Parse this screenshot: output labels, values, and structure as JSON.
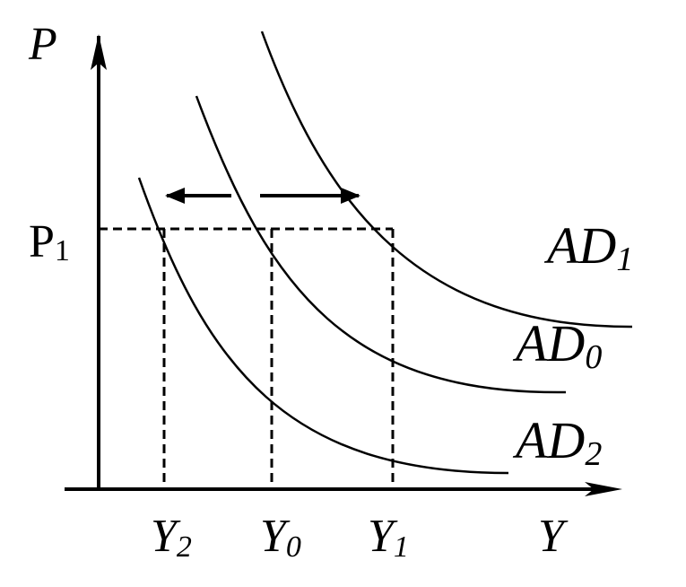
{
  "axes": {
    "y_label": "P",
    "x_label": "Y"
  },
  "price_level": {
    "label": "P",
    "subscript": "1"
  },
  "curves": [
    {
      "name": "AD",
      "subscript": "1"
    },
    {
      "name": "AD",
      "subscript": "0"
    },
    {
      "name": "AD",
      "subscript": "2"
    }
  ],
  "output_levels": [
    {
      "name": "Y",
      "subscript": "2"
    },
    {
      "name": "Y",
      "subscript": "0"
    },
    {
      "name": "Y",
      "subscript": "1"
    }
  ],
  "colors": {
    "ink": "#000000",
    "background": "#ffffff"
  }
}
